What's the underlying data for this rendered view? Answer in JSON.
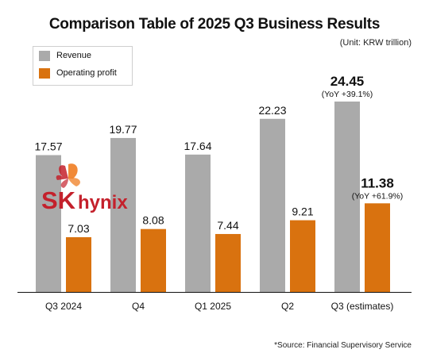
{
  "title": "Comparison Table of 2025 Q3 Business Results",
  "unit": "(Unit: KRW trillion)",
  "source": "*Source: Financial Supervisory Service",
  "logo": {
    "text_sk": "SK",
    "text_hynix": "hynix"
  },
  "colors": {
    "revenue": "#aaaaaa",
    "operating_profit": "#d9720f",
    "logo_red": "#c4212c",
    "logo_orange": "#ef7d22"
  },
  "chart_data": {
    "type": "bar",
    "categories": [
      "Q3 2024",
      "Q4",
      "Q1 2025",
      "Q2",
      "Q3 (estimates)"
    ],
    "series": [
      {
        "name": "Revenue",
        "values": [
          17.57,
          19.77,
          17.64,
          22.23,
          24.45
        ]
      },
      {
        "name": "Operating profit",
        "values": [
          7.03,
          8.08,
          7.44,
          9.21,
          11.38
        ]
      }
    ],
    "value_labels": {
      "Revenue": [
        "17.57",
        "19.77",
        "17.64",
        "22.23",
        "24.45"
      ],
      "Operating profit": [
        "7.03",
        "8.08",
        "7.44",
        "9.21",
        "11.38"
      ]
    },
    "annotations": [
      {
        "category": "Q3 (estimates)",
        "series": "Revenue",
        "text": "(YoY +39.1%)"
      },
      {
        "category": "Q3 (estimates)",
        "series": "Operating profit",
        "text": "(YoY +61.9%)"
      }
    ],
    "ylim": [
      0,
      24.45
    ],
    "grid": false,
    "legend_position": "top-left"
  }
}
